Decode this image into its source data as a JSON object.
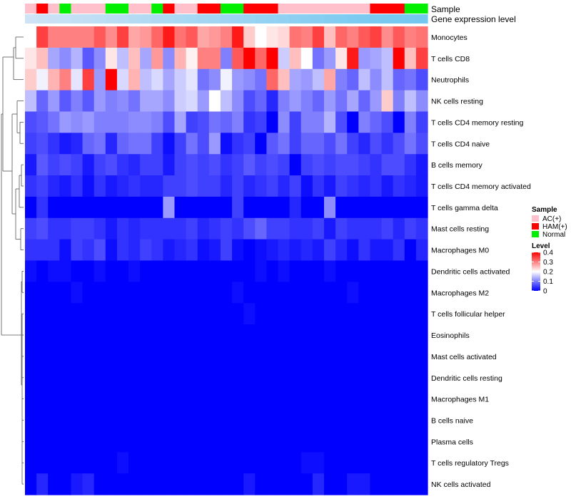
{
  "chart_data": {
    "type": "heatmap",
    "title": "",
    "annotation_labels": [
      "Sample",
      "Gene expression level"
    ],
    "column_samples": [
      "AC(+)",
      "HAM(+)",
      "AC(+)",
      "Normal",
      "AC(+)",
      "AC(+)",
      "AC(+)",
      "Normal",
      "Normal",
      "AC(+)",
      "AC(+)",
      "Normal",
      "HAM(+)",
      "AC(+)",
      "AC(+)",
      "HAM(+)",
      "HAM(+)",
      "Normal",
      "Normal",
      "HAM(+)",
      "HAM(+)",
      "HAM(+)",
      "AC(+)",
      "AC(+)",
      "AC(+)",
      "AC(+)",
      "AC(+)",
      "AC(+)",
      "AC(+)",
      "AC(+)",
      "HAM(+)",
      "HAM(+)",
      "HAM(+)",
      "Normal",
      "Normal"
    ],
    "expression_level": [
      0.05,
      0.08,
      0.11,
      0.14,
      0.17,
      0.2,
      0.23,
      0.26,
      0.29,
      0.32,
      0.35,
      0.38,
      0.41,
      0.44,
      0.47,
      0.5,
      0.53,
      0.56,
      0.59,
      0.62,
      0.65,
      0.68,
      0.71,
      0.74,
      0.77,
      0.8,
      0.83,
      0.86,
      0.89,
      0.92,
      0.95,
      0.97,
      0.98,
      0.99,
      1.0
    ],
    "rows": [
      "Monocytes",
      "T cells CD8",
      "Neutrophils",
      "NK cells resting",
      "T cells CD4 memory resting",
      "T cells CD4 naive",
      "B cells memory",
      "T cells CD4 memory activated",
      "T cells gamma delta",
      "Mast cells resting",
      "Macrophages M0",
      "Dendritic cells activated",
      "Macrophages M2",
      "T cells follicular helper",
      "Eosinophils",
      "Mast cells activated",
      "Dendritic cells resting",
      "Macrophages M1",
      "B cells naive",
      "Plasma cells",
      "T cells regulatory  Tregs",
      "NK cells activated"
    ],
    "values": [
      [
        0.2,
        0.35,
        0.3,
        0.3,
        0.3,
        0.3,
        0.33,
        0.29,
        0.35,
        0.27,
        0.28,
        0.32,
        0.38,
        0.31,
        0.33,
        0.27,
        0.28,
        0.3,
        0.38,
        0.24,
        0.2,
        0.22,
        0.23,
        0.31,
        0.3,
        0.35,
        0.25,
        0.32,
        0.3,
        0.33,
        0.35,
        0.29,
        0.33,
        0.3,
        0.31
      ],
      [
        0.22,
        0.25,
        0.13,
        0.11,
        0.14,
        0.07,
        0.11,
        0.22,
        0.15,
        0.25,
        0.13,
        0.28,
        0.11,
        0.26,
        0.21,
        0.3,
        0.3,
        0.1,
        0.33,
        0.4,
        0.32,
        0.4,
        0.16,
        0.25,
        0.2,
        0.09,
        0.12,
        0.22,
        0.38,
        0.12,
        0.13,
        0.15,
        0.4,
        0.25,
        0.35
      ],
      [
        0.24,
        0.19,
        0.26,
        0.3,
        0.18,
        0.35,
        0.12,
        0.4,
        0.17,
        0.26,
        0.15,
        0.17,
        0.13,
        0.16,
        0.18,
        0.09,
        0.11,
        0.19,
        0.12,
        0.11,
        0.09,
        0.32,
        0.25,
        0.13,
        0.12,
        0.15,
        0.27,
        0.1,
        0.08,
        0.15,
        0.11,
        0.15,
        0.08,
        0.09,
        0.06
      ],
      [
        0.15,
        0.08,
        0.12,
        0.07,
        0.1,
        0.07,
        0.12,
        0.1,
        0.11,
        0.09,
        0.13,
        0.13,
        0.11,
        0.16,
        0.17,
        0.12,
        0.2,
        0.15,
        0.11,
        0.06,
        0.08,
        0.03,
        0.1,
        0.12,
        0.1,
        0.08,
        0.12,
        0.09,
        0.13,
        0.08,
        0.12,
        0.24,
        0.1,
        0.15,
        0.11
      ],
      [
        0.06,
        0.07,
        0.09,
        0.12,
        0.11,
        0.12,
        0.1,
        0.1,
        0.1,
        0.11,
        0.11,
        0.1,
        0.06,
        0.13,
        0.05,
        0.06,
        0.09,
        0.08,
        0.1,
        0.04,
        0.05,
        0.0,
        0.11,
        0.05,
        0.1,
        0.1,
        0.14,
        0.06,
        0.0,
        0.1,
        0.08,
        0.06,
        0.0,
        0.1,
        0.05
      ],
      [
        0.05,
        0.06,
        0.04,
        0.02,
        0.03,
        0.08,
        0.09,
        0.03,
        0.08,
        0.09,
        0.09,
        0.05,
        0.01,
        0.05,
        0.09,
        0.06,
        0.12,
        0.01,
        0.04,
        0.05,
        0.0,
        0.07,
        0.09,
        0.05,
        0.08,
        0.08,
        0.06,
        0.09,
        0.05,
        0.03,
        0.06,
        0.04,
        0.06,
        0.09,
        0.06
      ],
      [
        0.02,
        0.07,
        0.05,
        0.06,
        0.05,
        0.02,
        0.05,
        0.06,
        0.04,
        0.03,
        0.05,
        0.05,
        0.02,
        0.05,
        0.06,
        0.05,
        0.06,
        0.04,
        0.05,
        0.07,
        0.05,
        0.06,
        0.05,
        0.0,
        0.05,
        0.06,
        0.05,
        0.06,
        0.06,
        0.05,
        0.04,
        0.06,
        0.06,
        0.04,
        0.02
      ],
      [
        0.04,
        0.05,
        0.03,
        0.02,
        0.04,
        0.01,
        0.04,
        0.02,
        0.03,
        0.04,
        0.03,
        0.03,
        0.05,
        0.05,
        0.06,
        0.05,
        0.05,
        0.03,
        0.05,
        0.03,
        0.04,
        0.05,
        0.03,
        0.05,
        0.01,
        0.04,
        0.02,
        0.05,
        0.04,
        0.03,
        0.04,
        0.02,
        0.04,
        0.03,
        0.02
      ],
      [
        0.0,
        0.04,
        0.0,
        0.0,
        0.0,
        0.0,
        0.0,
        0.0,
        0.0,
        0.0,
        0.0,
        0.0,
        0.12,
        0.0,
        0.0,
        0.0,
        0.0,
        0.0,
        0.05,
        0.0,
        0.0,
        0.0,
        0.0,
        0.03,
        0.0,
        0.0,
        0.11,
        0.0,
        0.0,
        0.0,
        0.0,
        0.0,
        0.0,
        0.0,
        0.0
      ],
      [
        0.05,
        0.06,
        0.04,
        0.04,
        0.05,
        0.05,
        0.04,
        0.02,
        0.04,
        0.03,
        0.04,
        0.04,
        0.04,
        0.04,
        0.05,
        0.03,
        0.04,
        0.05,
        0.04,
        0.06,
        0.08,
        0.05,
        0.05,
        0.04,
        0.04,
        0.05,
        0.02,
        0.05,
        0.04,
        0.04,
        0.04,
        0.05,
        0.03,
        0.05,
        0.04
      ],
      [
        0.04,
        0.04,
        0.04,
        0.01,
        0.05,
        0.04,
        0.06,
        0.01,
        0.04,
        0.03,
        0.05,
        0.04,
        0.02,
        0.03,
        0.04,
        0.01,
        0.02,
        0.05,
        0.01,
        0.0,
        0.01,
        0.02,
        0.03,
        0.02,
        0.03,
        0.02,
        0.05,
        0.03,
        0.01,
        0.04,
        0.02,
        0.02,
        0.04,
        0.0,
        0.03
      ],
      [
        0.01,
        0.0,
        0.01,
        0.01,
        0.0,
        0.0,
        0.01,
        0.0,
        0.0,
        0.01,
        0.0,
        0.0,
        0.0,
        0.0,
        0.0,
        0.0,
        0.0,
        0.0,
        0.0,
        0.0,
        0.01,
        0.0,
        0.01,
        0.0,
        0.0,
        0.0,
        0.01,
        0.0,
        0.0,
        0.0,
        0.0,
        0.0,
        0.0,
        0.0,
        0.0
      ],
      [
        0.0,
        0.0,
        0.0,
        0.0,
        0.01,
        0.0,
        0.0,
        0.0,
        0.0,
        0.0,
        0.0,
        0.0,
        0.0,
        0.0,
        0.0,
        0.0,
        0.0,
        0.0,
        0.01,
        0.0,
        0.0,
        0.0,
        0.0,
        0.0,
        0.0,
        0.0,
        0.0,
        0.0,
        0.01,
        0.0,
        0.0,
        0.0,
        0.0,
        0.0,
        0.0
      ],
      [
        0.0,
        0.0,
        0.0,
        0.0,
        0.0,
        0.0,
        0.0,
        0.0,
        0.0,
        0.0,
        0.0,
        0.0,
        0.0,
        0.0,
        0.0,
        0.0,
        0.0,
        0.0,
        0.0,
        0.01,
        0.0,
        0.0,
        0.0,
        0.0,
        0.0,
        0.0,
        0.0,
        0.0,
        0.0,
        0.0,
        0.0,
        0.0,
        0.0,
        0.0,
        0.0
      ],
      [
        0,
        0,
        0,
        0,
        0,
        0,
        0,
        0,
        0,
        0,
        0,
        0,
        0,
        0,
        0,
        0,
        0,
        0,
        0,
        0,
        0,
        0,
        0,
        0,
        0,
        0,
        0,
        0,
        0,
        0,
        0,
        0,
        0,
        0,
        0
      ],
      [
        0,
        0,
        0,
        0,
        0,
        0,
        0,
        0,
        0,
        0,
        0,
        0,
        0,
        0,
        0,
        0,
        0,
        0,
        0,
        0,
        0,
        0,
        0,
        0,
        0,
        0,
        0,
        0,
        0,
        0,
        0,
        0,
        0,
        0,
        0
      ],
      [
        0,
        0,
        0,
        0,
        0,
        0,
        0,
        0,
        0,
        0,
        0,
        0,
        0,
        0,
        0,
        0,
        0,
        0,
        0,
        0,
        0,
        0,
        0,
        0,
        0,
        0,
        0,
        0,
        0,
        0,
        0,
        0,
        0,
        0,
        0
      ],
      [
        0,
        0,
        0,
        0,
        0,
        0,
        0,
        0,
        0,
        0,
        0,
        0,
        0,
        0,
        0,
        0,
        0,
        0,
        0,
        0,
        0,
        0,
        0,
        0,
        0,
        0,
        0,
        0,
        0,
        0,
        0,
        0,
        0,
        0,
        0
      ],
      [
        0,
        0,
        0,
        0,
        0,
        0,
        0,
        0,
        0,
        0,
        0,
        0,
        0,
        0,
        0,
        0,
        0,
        0,
        0,
        0,
        0,
        0,
        0,
        0,
        0,
        0,
        0,
        0,
        0,
        0,
        0,
        0,
        0,
        0,
        0
      ],
      [
        0,
        0,
        0,
        0,
        0,
        0,
        0,
        0,
        0,
        0,
        0,
        0,
        0,
        0,
        0,
        0,
        0,
        0,
        0,
        0,
        0,
        0,
        0,
        0,
        0,
        0,
        0,
        0,
        0,
        0,
        0,
        0,
        0,
        0,
        0
      ],
      [
        0,
        0,
        0,
        0,
        0,
        0,
        0,
        0,
        0.01,
        0,
        0,
        0,
        0,
        0,
        0,
        0,
        0,
        0,
        0,
        0,
        0,
        0,
        0,
        0,
        0.01,
        0.01,
        0,
        0,
        0,
        0,
        0,
        0,
        0,
        0,
        0
      ],
      [
        0.0,
        0.03,
        0.0,
        0.0,
        0.02,
        0.03,
        0.0,
        0.0,
        0.0,
        0.0,
        0.0,
        0.0,
        0.0,
        0.0,
        0.0,
        0.0,
        0.0,
        0.0,
        0.0,
        0.02,
        0.0,
        0.0,
        0.0,
        0.0,
        0.0,
        0.03,
        0.0,
        0.0,
        0.02,
        0.02,
        0.0,
        0.0,
        0.0,
        0.0,
        0.0
      ]
    ],
    "legend_sample": {
      "title": "Sample",
      "entries": [
        {
          "label": "AC(+)",
          "color": "#FFC0CB"
        },
        {
          "label": "HAM(+)",
          "color": "#FF0000"
        },
        {
          "label": "Normal",
          "color": "#00EE00"
        }
      ]
    },
    "legend_level": {
      "title": "Level",
      "ticks": [
        "0.4",
        "0.3",
        "0.2",
        "0.1",
        "0"
      ],
      "tick_values": [
        0.4,
        0.3,
        0.2,
        0.1,
        0
      ],
      "range": [
        0,
        0.4
      ],
      "colors": [
        "#0000FF",
        "#FFFFFF",
        "#FF0000"
      ]
    },
    "expression_colors": [
      "#D3E4F5",
      "#74C8F0"
    ]
  }
}
